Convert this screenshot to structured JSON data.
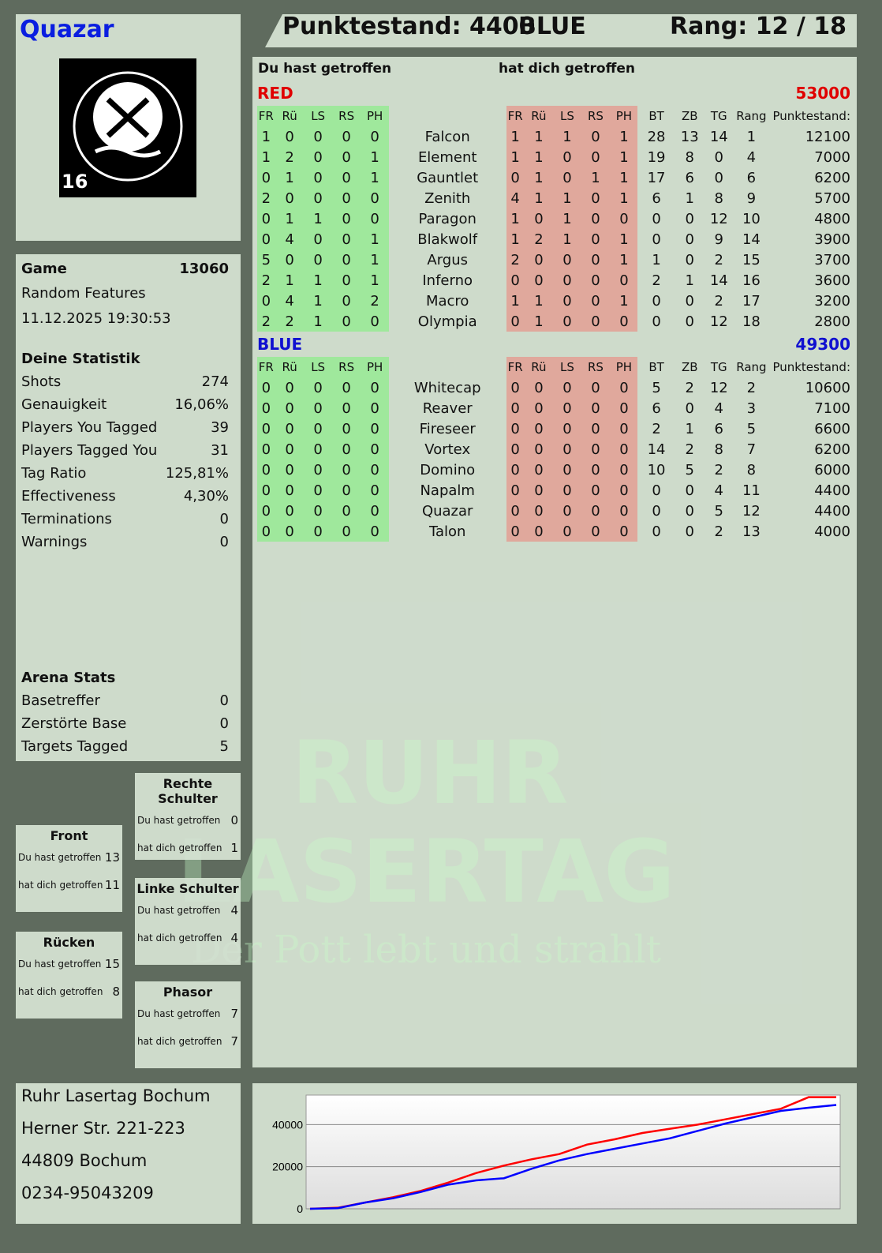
{
  "player": {
    "name": "Quazar",
    "badge_number": "16",
    "logo_text": "RUHR LASERTAG"
  },
  "header": {
    "score_label": "Punktestand: 4400",
    "team": "BLUE",
    "rank_label": "Rang: 12 / 18"
  },
  "game": {
    "label": "Game",
    "number": "13060",
    "mode": "Random Features",
    "datetime": "11.12.2025 19:30:53"
  },
  "stats": {
    "title": "Deine Statistik",
    "items": [
      {
        "label": "Shots",
        "value": "274"
      },
      {
        "label": "Genauigkeit",
        "value": "16,06%"
      },
      {
        "label": "Players You Tagged",
        "value": "39"
      },
      {
        "label": "Players Tagged You",
        "value": "31"
      },
      {
        "label": "Tag Ratio",
        "value": "125,81%"
      },
      {
        "label": "Effectiveness",
        "value": "4,30%"
      },
      {
        "label": "Terminations",
        "value": "0"
      },
      {
        "label": "Warnings",
        "value": "0"
      }
    ]
  },
  "arena": {
    "title": "Arena Stats",
    "items": [
      {
        "label": "Basetreffer",
        "value": "0"
      },
      {
        "label": "Zerstörte Base",
        "value": "0"
      },
      {
        "label": "Targets Tagged",
        "value": "5"
      }
    ]
  },
  "zones": [
    {
      "title": "Rechte Schulter",
      "hit": "0",
      "got": "1"
    },
    {
      "title": "Front",
      "hit": "13",
      "got": "11"
    },
    {
      "title": "Linke Schulter",
      "hit": "4",
      "got": "4"
    },
    {
      "title": "Rücken",
      "hit": "15",
      "got": "8"
    },
    {
      "title": "Phasor",
      "hit": "7",
      "got": "7"
    }
  ],
  "zone_labels": {
    "hit": "Du hast getroffen",
    "got": "hat dich getroffen"
  },
  "main": {
    "hit_header": "Du hast getroffen",
    "got_header": "hat dich getroffen",
    "columns": [
      "FR",
      "Rü",
      "LS",
      "RS",
      "PH"
    ],
    "stat_columns": [
      "BT",
      "ZB",
      "TG",
      "Rang",
      "Punktestand:"
    ],
    "teams": [
      {
        "name": "RED",
        "score": "53000",
        "color": "#e00000",
        "players": [
          [
            "1",
            "0",
            "0",
            "0",
            "0",
            "Falcon",
            "1",
            "1",
            "1",
            "0",
            "1",
            "28",
            "13",
            "14",
            "1",
            "12100"
          ],
          [
            "1",
            "2",
            "0",
            "0",
            "1",
            "Element",
            "1",
            "1",
            "0",
            "0",
            "1",
            "19",
            "8",
            "0",
            "4",
            "7000"
          ],
          [
            "0",
            "1",
            "0",
            "0",
            "1",
            "Gauntlet",
            "0",
            "1",
            "0",
            "1",
            "1",
            "17",
            "6",
            "0",
            "6",
            "6200"
          ],
          [
            "2",
            "0",
            "0",
            "0",
            "0",
            "Zenith",
            "4",
            "1",
            "1",
            "0",
            "1",
            "6",
            "1",
            "8",
            "9",
            "5700"
          ],
          [
            "0",
            "1",
            "1",
            "0",
            "0",
            "Paragon",
            "1",
            "0",
            "1",
            "0",
            "0",
            "0",
            "0",
            "12",
            "10",
            "4800"
          ],
          [
            "0",
            "4",
            "0",
            "0",
            "1",
            "Blakwolf",
            "1",
            "2",
            "1",
            "0",
            "1",
            "0",
            "0",
            "9",
            "14",
            "3900"
          ],
          [
            "5",
            "0",
            "0",
            "0",
            "1",
            "Argus",
            "2",
            "0",
            "0",
            "0",
            "1",
            "1",
            "0",
            "2",
            "15",
            "3700"
          ],
          [
            "2",
            "1",
            "1",
            "0",
            "1",
            "Inferno",
            "0",
            "0",
            "0",
            "0",
            "0",
            "2",
            "1",
            "14",
            "16",
            "3600"
          ],
          [
            "0",
            "4",
            "1",
            "0",
            "2",
            "Macro",
            "1",
            "1",
            "0",
            "0",
            "1",
            "0",
            "0",
            "2",
            "17",
            "3200"
          ],
          [
            "2",
            "2",
            "1",
            "0",
            "0",
            "Olympia",
            "0",
            "1",
            "0",
            "0",
            "0",
            "0",
            "0",
            "12",
            "18",
            "2800"
          ]
        ]
      },
      {
        "name": "BLUE",
        "score": "49300",
        "color": "#1010d0",
        "players": [
          [
            "0",
            "0",
            "0",
            "0",
            "0",
            "Whitecap",
            "0",
            "0",
            "0",
            "0",
            "0",
            "5",
            "2",
            "12",
            "2",
            "10600"
          ],
          [
            "0",
            "0",
            "0",
            "0",
            "0",
            "Reaver",
            "0",
            "0",
            "0",
            "0",
            "0",
            "6",
            "0",
            "4",
            "3",
            "7100"
          ],
          [
            "0",
            "0",
            "0",
            "0",
            "0",
            "Fireseer",
            "0",
            "0",
            "0",
            "0",
            "0",
            "2",
            "1",
            "6",
            "5",
            "6600"
          ],
          [
            "0",
            "0",
            "0",
            "0",
            "0",
            "Vortex",
            "0",
            "0",
            "0",
            "0",
            "0",
            "14",
            "2",
            "8",
            "7",
            "6200"
          ],
          [
            "0",
            "0",
            "0",
            "0",
            "0",
            "Domino",
            "0",
            "0",
            "0",
            "0",
            "0",
            "10",
            "5",
            "2",
            "8",
            "6000"
          ],
          [
            "0",
            "0",
            "0",
            "0",
            "0",
            "Napalm",
            "0",
            "0",
            "0",
            "0",
            "0",
            "0",
            "0",
            "4",
            "11",
            "4400"
          ],
          [
            "0",
            "0",
            "0",
            "0",
            "0",
            "Quazar",
            "0",
            "0",
            "0",
            "0",
            "0",
            "0",
            "0",
            "5",
            "12",
            "4400"
          ],
          [
            "0",
            "0",
            "0",
            "0",
            "0",
            "Talon",
            "0",
            "0",
            "0",
            "0",
            "0",
            "0",
            "0",
            "2",
            "13",
            "4000"
          ]
        ]
      }
    ]
  },
  "watermark": {
    "line1": "RUHR",
    "line2": "LASERTAG",
    "slogan": "Der Pott lebt und strahlt"
  },
  "address": [
    "Ruhr Lasertag Bochum",
    "Herner Str. 221-223",
    "44809 Bochum",
    "0234-95043209"
  ],
  "chart_data": {
    "type": "line",
    "x": [
      0,
      1,
      2,
      3,
      4,
      5,
      6,
      7,
      8,
      9,
      10,
      11,
      12,
      13,
      14,
      15,
      16,
      17,
      18,
      19
    ],
    "yticks": [
      "0",
      "20000",
      "40000"
    ],
    "ylim": [
      0,
      54000
    ],
    "series": [
      {
        "color": "#ff0000",
        "values": [
          0,
          500,
          3000,
          5500,
          8500,
          12500,
          17000,
          20500,
          23500,
          26000,
          30500,
          33000,
          36000,
          38000,
          40000,
          42500,
          45000,
          47500,
          53000,
          53000
        ]
      },
      {
        "color": "#0000ff",
        "values": [
          0,
          300,
          3000,
          5000,
          8000,
          11500,
          13500,
          14500,
          19000,
          23000,
          26000,
          28500,
          31000,
          33500,
          37000,
          40500,
          43500,
          46500,
          48000,
          49300
        ]
      }
    ]
  }
}
